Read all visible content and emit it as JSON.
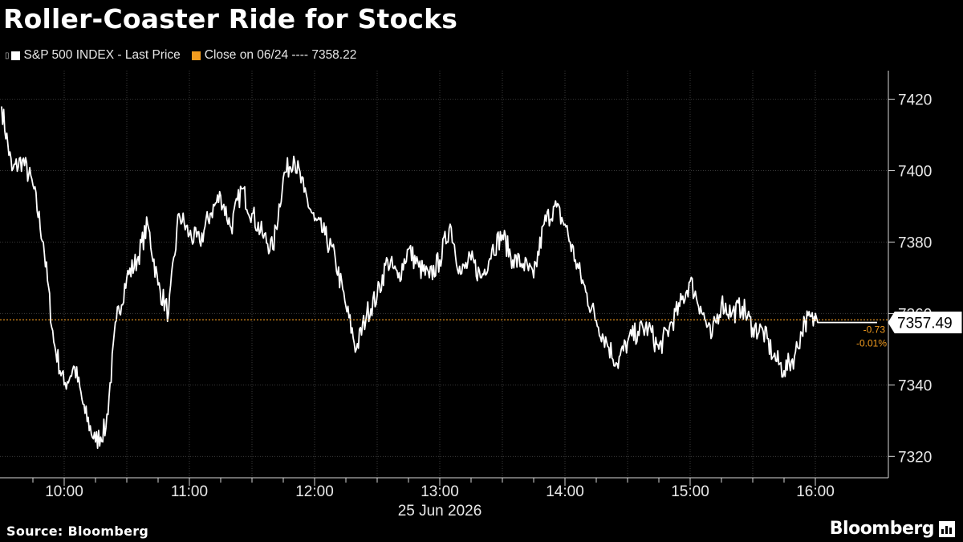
{
  "chart_data": {
    "type": "line",
    "title": "Roller-Coaster Ride for Stocks",
    "series_name": "S&P 500 INDEX - Last Price",
    "reference_label": "Close on 06/24 ---- 7358.22",
    "reference_value": 7358.22,
    "last_value": 7357.49,
    "last_value_label": "7357.49",
    "change_label": "-0.73",
    "change_pct_label": "-0.01%",
    "ylim": [
      7314,
      7428
    ],
    "yticks": [
      7320,
      7340,
      7360,
      7380,
      7400,
      7420
    ],
    "ytick_labels": [
      "7320",
      "7340",
      "7360",
      "7380",
      "7400",
      "7420"
    ],
    "xticks": [
      "10:00",
      "11:00",
      "12:00",
      "13:00",
      "14:00",
      "15:00",
      "16:00"
    ],
    "date_label": "25 Jun 2026",
    "grid": true,
    "colors": {
      "line": "#ffffff",
      "reference": "#f39c1f",
      "grid": "#3a3a3a",
      "axis": "#d8d8d8"
    },
    "x_times": [
      "09:30",
      "09:35",
      "09:40",
      "09:45",
      "09:50",
      "09:55",
      "10:00",
      "10:05",
      "10:10",
      "10:15",
      "10:20",
      "10:25",
      "10:30",
      "10:35",
      "10:40",
      "10:45",
      "10:50",
      "10:55",
      "11:00",
      "11:05",
      "11:10",
      "11:15",
      "11:20",
      "11:25",
      "11:30",
      "11:35",
      "11:40",
      "11:45",
      "11:50",
      "11:55",
      "12:00",
      "12:05",
      "12:10",
      "12:15",
      "12:20",
      "12:25",
      "12:30",
      "12:35",
      "12:40",
      "12:45",
      "12:50",
      "12:55",
      "13:00",
      "13:05",
      "13:10",
      "13:15",
      "13:20",
      "13:25",
      "13:30",
      "13:35",
      "13:40",
      "13:45",
      "13:50",
      "13:55",
      "14:00",
      "14:05",
      "14:10",
      "14:15",
      "14:20",
      "14:25",
      "14:30",
      "14:35",
      "14:40",
      "14:45",
      "14:50",
      "14:55",
      "15:00",
      "15:05",
      "15:10",
      "15:15",
      "15:20",
      "15:25",
      "15:30",
      "15:35",
      "15:40",
      "15:45",
      "15:50",
      "15:55",
      "16:00"
    ],
    "values": [
      7418,
      7400,
      7403,
      7396,
      7380,
      7352,
      7340,
      7345,
      7332,
      7324,
      7328,
      7358,
      7370,
      7375,
      7385,
      7368,
      7360,
      7388,
      7382,
      7380,
      7388,
      7393,
      7384,
      7395,
      7388,
      7382,
      7378,
      7398,
      7404,
      7394,
      7386,
      7382,
      7375,
      7362,
      7350,
      7360,
      7365,
      7375,
      7370,
      7378,
      7373,
      7370,
      7375,
      7385,
      7371,
      7375,
      7370,
      7378,
      7382,
      7375,
      7374,
      7370,
      7385,
      7390,
      7385,
      7375,
      7366,
      7358,
      7352,
      7346,
      7352,
      7355,
      7356,
      7350,
      7356,
      7362,
      7369,
      7362,
      7353,
      7363,
      7360,
      7362,
      7356,
      7355,
      7348,
      7344,
      7348,
      7358,
      7358
    ]
  },
  "footer": {
    "source": "Source: Bloomberg",
    "brand": "Bloomberg"
  }
}
